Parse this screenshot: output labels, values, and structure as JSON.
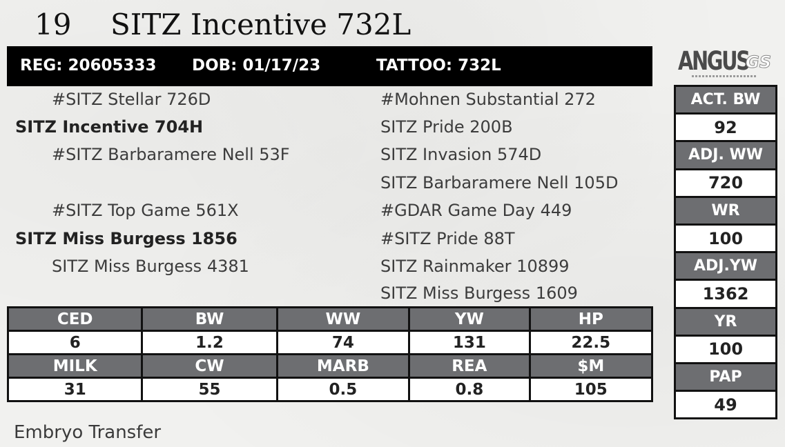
{
  "lot": {
    "number": "19",
    "name": "SITZ Incentive 732L"
  },
  "registration": {
    "reg": "REG: 20605333",
    "dob": "DOB: 01/17/23",
    "tattoo": "TATTOO: 732L"
  },
  "logo": {
    "word": "ANGUS",
    "suffix": "GS"
  },
  "pedigree": {
    "sire": "SITZ Incentive 704H",
    "sire_sire": "#SITZ Stellar 726D",
    "sire_dam": "#SITZ Barbaramere Nell 53F",
    "sss": "#Mohnen Substantial 272",
    "ssd": "SITZ Pride 200B",
    "sds": "SITZ Invasion 574D",
    "sdd": "SITZ Barbaramere Nell 105D",
    "dam": "SITZ Miss Burgess 1856",
    "dam_sire": "#SITZ Top Game 561X",
    "dam_dam": "SITZ Miss Burgess 4381",
    "dss": "#GDAR Game Day 449",
    "dsd": "#SITZ Pride 88T",
    "dds": "SITZ Rainmaker 10899",
    "ddd": "SITZ Miss Burgess 1609"
  },
  "epd": {
    "row1_headers": [
      "CED",
      "BW",
      "WW",
      "YW",
      "HP"
    ],
    "row1_values": [
      "6",
      "1.2",
      "74",
      "131",
      "22.5"
    ],
    "row2_headers": [
      "MILK",
      "CW",
      "MARB",
      "REA",
      "$M"
    ],
    "row2_values": [
      "31",
      "55",
      "0.5",
      "0.8",
      "105"
    ]
  },
  "performance": [
    {
      "label": "ACT. BW",
      "value": "92"
    },
    {
      "label": "ADJ. WW",
      "value": "720"
    },
    {
      "label": "WR",
      "value": "100"
    },
    {
      "label": "ADJ.YW",
      "value": "1362"
    },
    {
      "label": "YR",
      "value": "100"
    },
    {
      "label": "PAP",
      "value": "49"
    }
  ],
  "footer": {
    "note": "Embryo Transfer"
  },
  "colors": {
    "bar": "#000000",
    "header_cell": "#6d6e71",
    "value_cell": "#ffffff",
    "background": "#f1f1ef"
  }
}
